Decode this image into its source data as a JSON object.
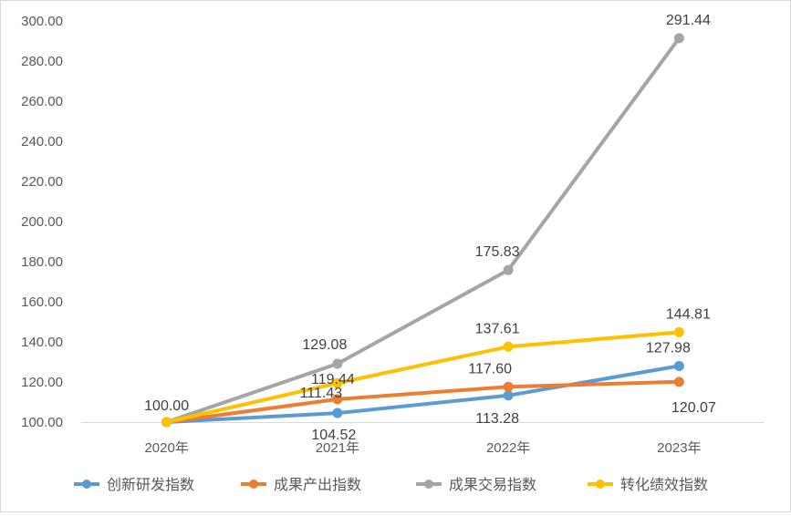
{
  "chart_data": {
    "type": "line",
    "title": "",
    "xlabel": "",
    "ylabel": "",
    "categories": [
      "2020年",
      "2021年",
      "2022年",
      "2023年"
    ],
    "ylim": [
      100,
      300
    ],
    "ytick_step": 20,
    "ytick_labels": [
      "100.00",
      "120.00",
      "140.00",
      "160.00",
      "180.00",
      "200.00",
      "220.00",
      "240.00",
      "260.00",
      "280.00",
      "300.00"
    ],
    "grid": false,
    "legend_position": "bottom",
    "series": [
      {
        "name": "创新研发指数",
        "color": "#5B9BD5",
        "values": [
          100.0,
          104.52,
          113.28,
          127.98
        ],
        "labels": [
          "100.00",
          "104.52",
          "113.28",
          "127.98"
        ]
      },
      {
        "name": "成果产出指数",
        "color": "#ED7D31",
        "values": [
          100.0,
          111.43,
          117.6,
          120.07
        ],
        "labels": [
          "100.00",
          "111.43",
          "117.60",
          "120.07"
        ]
      },
      {
        "name": "成果交易指数",
        "color": "#A5A5A5",
        "values": [
          100.0,
          129.08,
          175.83,
          291.44
        ],
        "labels": [
          "100.00",
          "129.08",
          "175.83",
          "291.44"
        ]
      },
      {
        "name": "转化绩效指数",
        "color": "#FFC000",
        "values": [
          100.0,
          119.44,
          137.61,
          144.81
        ],
        "labels": [
          "100.00",
          "119.44",
          "137.61",
          "144.81"
        ]
      }
    ],
    "data_labels_shown": [
      "100.00",
      "104.52",
      "113.28",
      "127.98",
      "111.43",
      "117.60",
      "120.07",
      "129.08",
      "175.83",
      "291.44",
      "119.44",
      "137.61",
      "144.81"
    ]
  }
}
